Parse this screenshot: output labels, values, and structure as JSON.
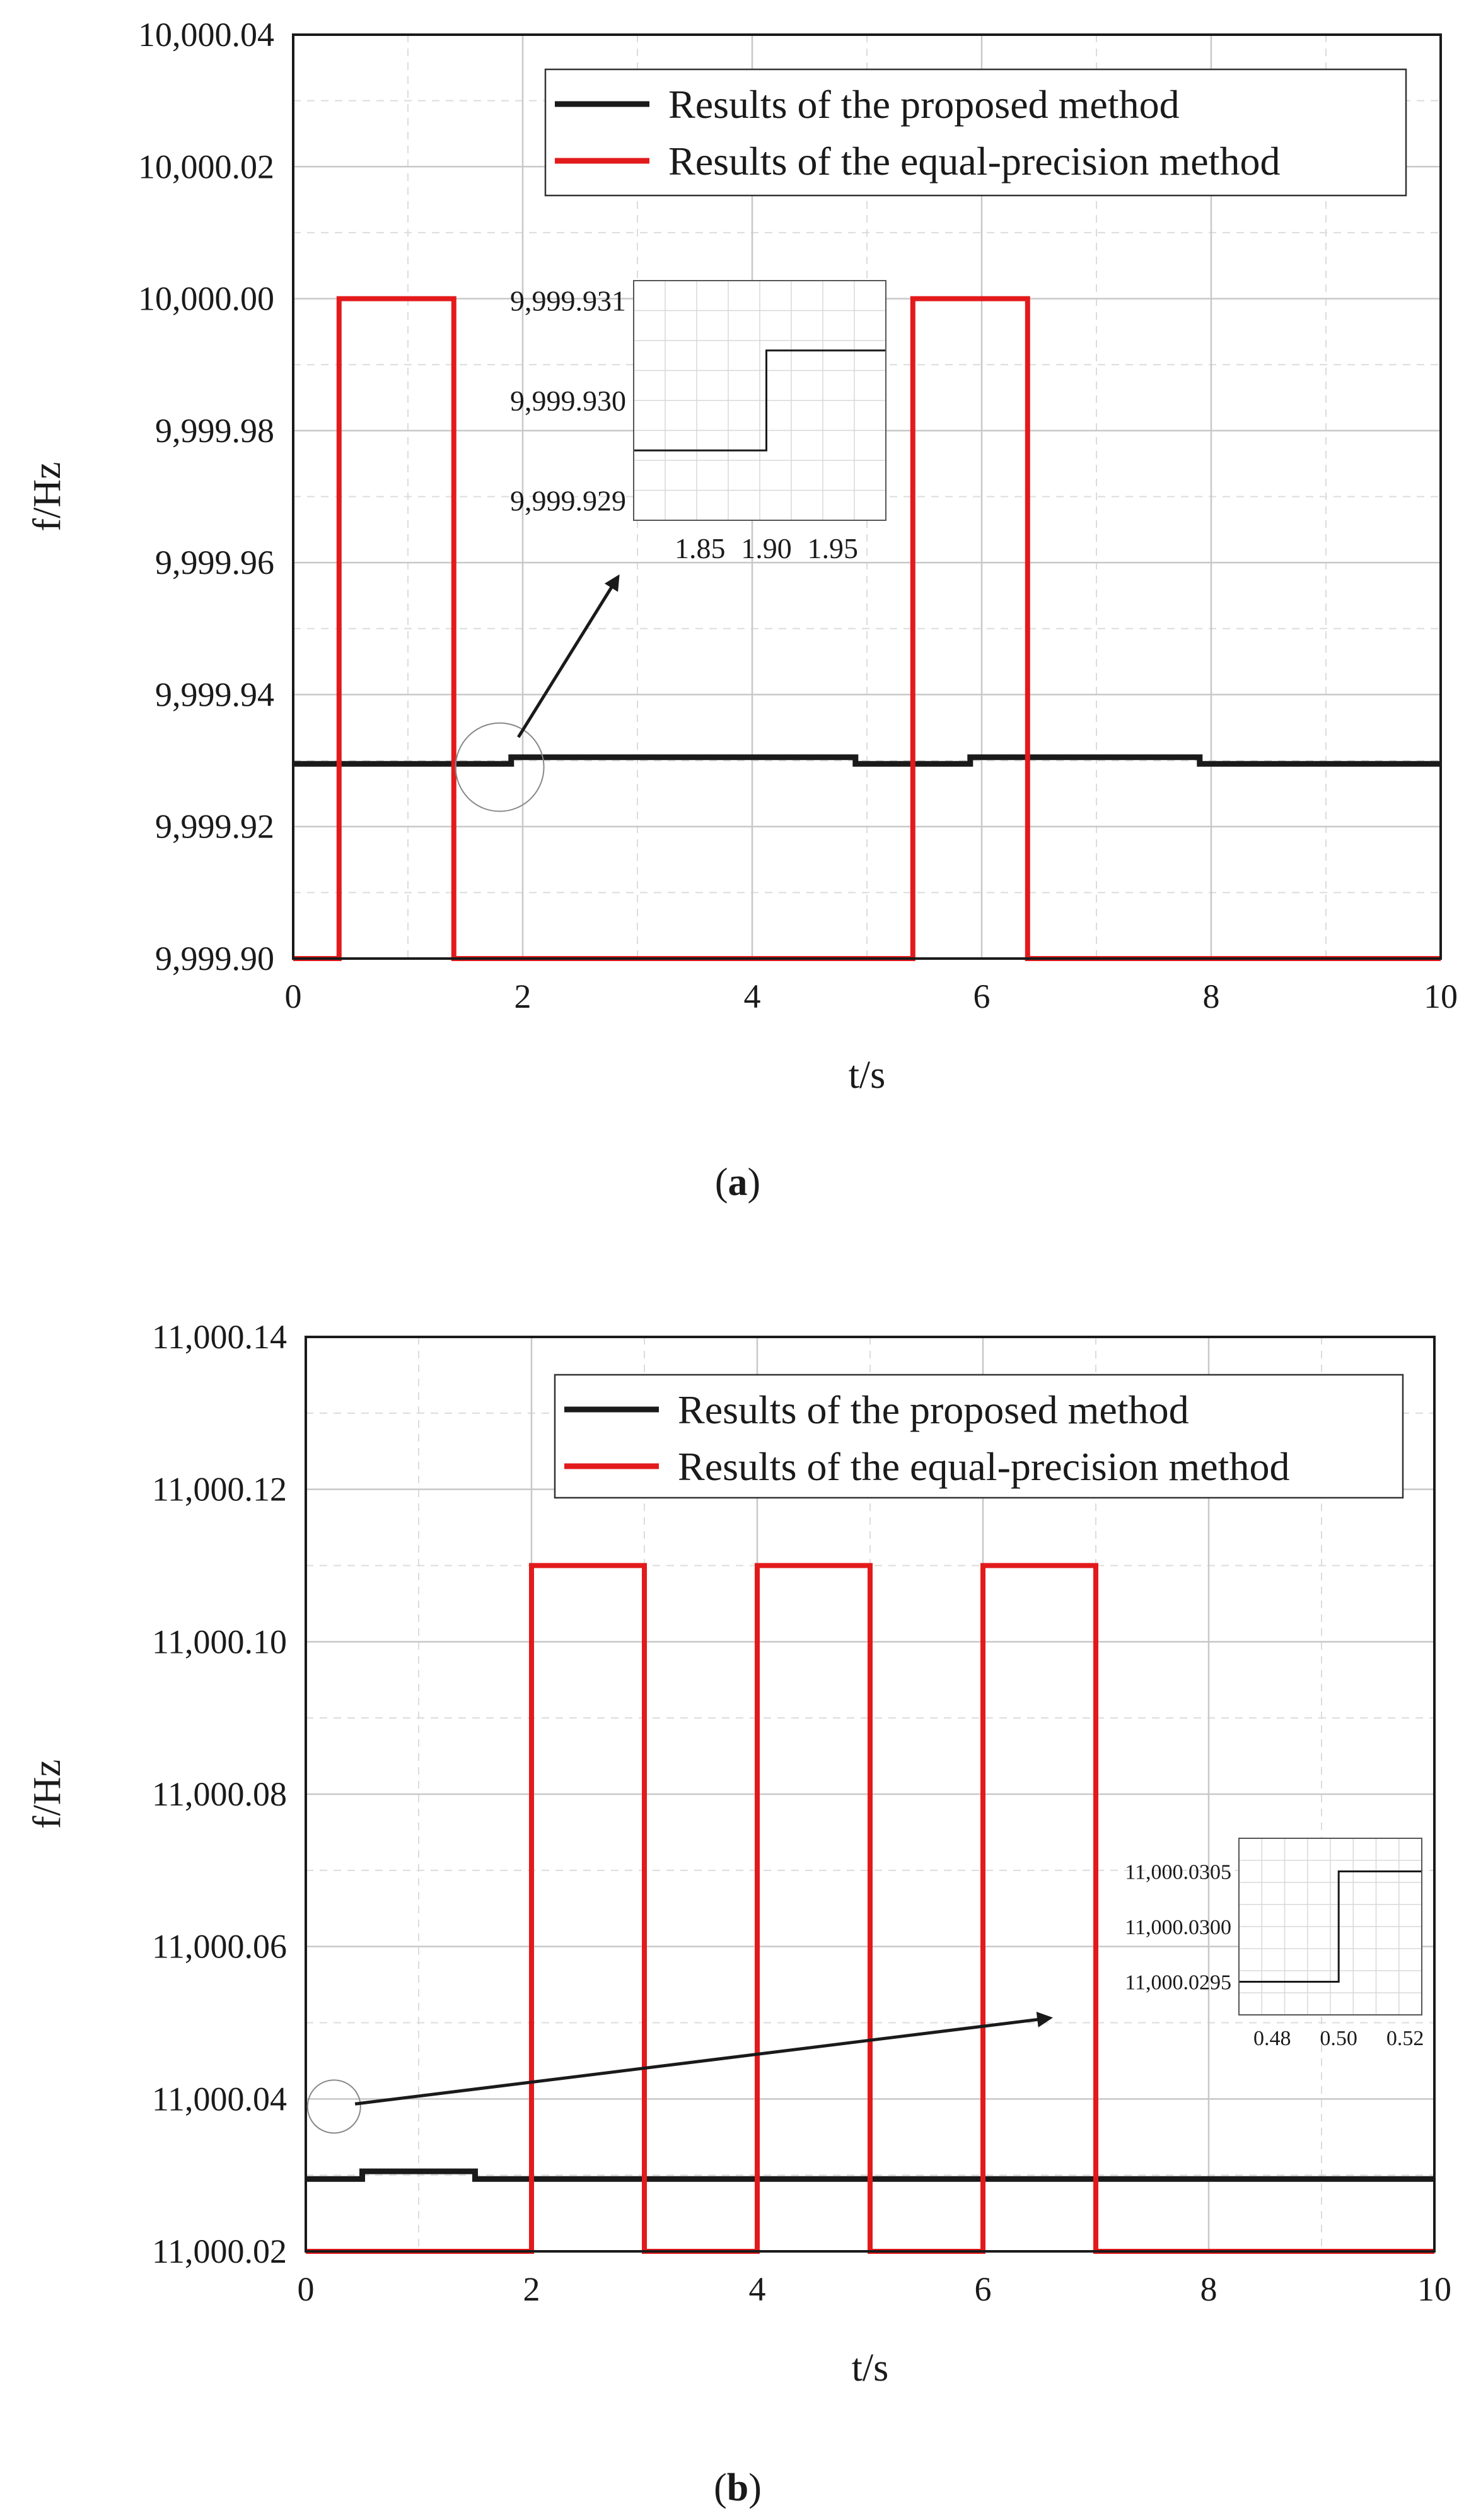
{
  "colors": {
    "proposed": "#1a1a1a",
    "equal": "#e31a1c",
    "grid": "#c8c8c8",
    "frame": "#1a1a1a"
  },
  "chart_data": [
    {
      "id": "a",
      "type": "line",
      "caption_label": "a",
      "xlabel": "t/s",
      "ylabel": "f/Hz",
      "xlim": [
        0,
        10
      ],
      "ylim": [
        9999.9,
        10000.04
      ],
      "xticks": [
        0,
        2,
        4,
        6,
        8,
        10
      ],
      "xtick_labels": [
        "0",
        "2",
        "4",
        "6",
        "8",
        "10"
      ],
      "yticks": [
        9999.9,
        9999.92,
        9999.94,
        9999.96,
        9999.98,
        10000.0,
        10000.02,
        10000.04
      ],
      "ytick_labels": [
        "9,999.90",
        "9,999.92",
        "9,999.94",
        "9,999.96",
        "9,999.98",
        "10,000.00",
        "10,000.02",
        "10,000.04"
      ],
      "legend": [
        "Results of the proposed method",
        "Results of the equal-precision method"
      ],
      "legend_position": "top-right",
      "series": [
        {
          "name": "Results of the proposed method",
          "color_key": "proposed",
          "x": [
            0,
            1.9,
            1.9,
            4.9,
            4.9,
            5.9,
            5.9,
            7.9,
            7.9,
            10
          ],
          "y": [
            9999.9295,
            9999.9295,
            9999.9305,
            9999.9305,
            9999.9295,
            9999.9295,
            9999.9305,
            9999.9305,
            9999.9295,
            9999.9295
          ]
        },
        {
          "name": "Results of the equal-precision method",
          "color_key": "equal",
          "x": [
            0,
            0.4,
            0.4,
            1.4,
            1.4,
            5.4,
            5.4,
            6.4,
            6.4,
            10
          ],
          "y": [
            9999.9,
            9999.9,
            10000.0,
            10000.0,
            9999.9,
            9999.9,
            10000.0,
            10000.0,
            9999.9,
            9999.9
          ]
        }
      ],
      "zoom_marker": {
        "x": 1.8,
        "y": 9999.929
      },
      "inset": {
        "xlim": [
          1.8,
          1.99
        ],
        "ylim": [
          9999.9288,
          9999.9312
        ],
        "xticks": [
          1.85,
          1.9,
          1.95
        ],
        "xtick_labels": [
          "1.85",
          "1.90",
          "1.95"
        ],
        "yticks": [
          9999.929,
          9999.93,
          9999.931
        ],
        "ytick_labels": [
          "9,999.929",
          "9,999.930",
          "9,999.931"
        ],
        "series": {
          "x": [
            1.8,
            1.9,
            1.9,
            1.99
          ],
          "y": [
            9999.9295,
            9999.9295,
            9999.9305,
            9999.9305
          ]
        }
      }
    },
    {
      "id": "b",
      "type": "line",
      "caption_label": "b",
      "xlabel": "t/s",
      "ylabel": "f/Hz",
      "xlim": [
        0,
        10
      ],
      "ylim": [
        11000.02,
        11000.14
      ],
      "xticks": [
        0,
        2,
        4,
        6,
        8,
        10
      ],
      "xtick_labels": [
        "0",
        "2",
        "4",
        "6",
        "8",
        "10"
      ],
      "yticks": [
        11000.02,
        11000.04,
        11000.06,
        11000.08,
        11000.1,
        11000.12,
        11000.14
      ],
      "ytick_labels": [
        "11,000.02",
        "11,000.04",
        "11,000.06",
        "11,000.08",
        "11,000.10",
        "11,000.12",
        "11,000.14"
      ],
      "legend": [
        "Results of the proposed method",
        "Results of the equal-precision method"
      ],
      "legend_position": "top-right",
      "series": [
        {
          "name": "Results of the proposed method",
          "color_key": "proposed",
          "x": [
            0,
            0.5,
            0.5,
            1.5,
            1.5,
            10
          ],
          "y": [
            11000.0295,
            11000.0295,
            11000.0305,
            11000.0305,
            11000.0295,
            11000.0295
          ]
        },
        {
          "name": "Results of the equal-precision method",
          "color_key": "equal",
          "x": [
            0,
            2,
            2,
            3,
            3,
            4,
            4,
            5,
            5,
            6,
            6,
            7,
            7,
            10
          ],
          "y": [
            11000.02,
            11000.02,
            11000.11,
            11000.11,
            11000.02,
            11000.02,
            11000.11,
            11000.11,
            11000.02,
            11000.02,
            11000.11,
            11000.11,
            11000.02,
            11000.02
          ]
        }
      ],
      "zoom_marker": {
        "x": 0.25,
        "y": 11000.039
      },
      "inset": {
        "xlim": [
          0.47,
          0.525
        ],
        "ylim": [
          11000.0292,
          11000.0308
        ],
        "xticks": [
          0.48,
          0.5,
          0.52
        ],
        "xtick_labels": [
          "0.48",
          "0.50",
          "0.52"
        ],
        "yticks": [
          11000.0295,
          11000.03,
          11000.0305
        ],
        "ytick_labels": [
          "11,000.0295",
          "11,000.0300",
          "11,000.0305"
        ],
        "series": {
          "x": [
            0.47,
            0.5,
            0.5,
            0.525
          ],
          "y": [
            11000.0295,
            11000.0295,
            11000.0305,
            11000.0305
          ]
        }
      }
    }
  ]
}
